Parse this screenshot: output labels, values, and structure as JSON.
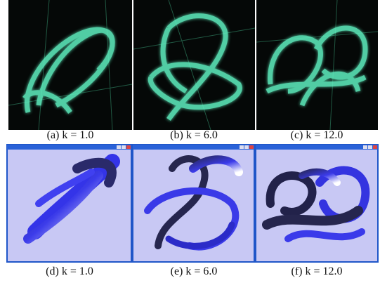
{
  "panels": [
    {
      "caption": "(a) k = 1.0"
    },
    {
      "caption": "(b) k = 6.0"
    },
    {
      "caption": "(c) k = 12.0"
    },
    {
      "caption": "(d) k = 1.0"
    },
    {
      "caption": "(e) k = 6.0"
    },
    {
      "caption": "(f) k = 12.0"
    }
  ]
}
